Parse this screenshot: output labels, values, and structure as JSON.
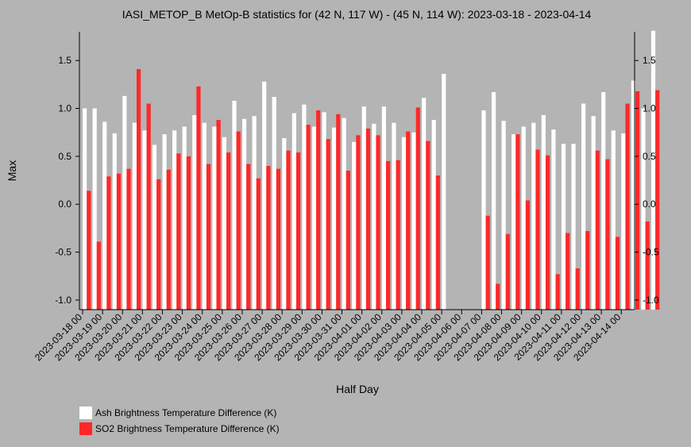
{
  "chart_data": {
    "type": "bar",
    "title": "IASI_METOP_B MetOp-B statistics for (42 N, 117 W) - (45 N, 114 W): 2023-03-18 - 2023-04-14",
    "xlabel": "Half Day",
    "ylabel": "Max",
    "ylim": [
      -1.1,
      1.8
    ],
    "yticks": [
      -1.0,
      -0.5,
      0.0,
      0.5,
      1.0,
      1.5
    ],
    "ytick_labels": [
      "-1.0",
      "-0.5",
      "0.0",
      "0.5",
      "1.0",
      "1.5"
    ],
    "grid": false,
    "legend_position": "bottom-left",
    "x_tick_labels": [
      "2023-03-18 00",
      "2023-03-19 00",
      "2023-03-20 00",
      "2023-03-21 00",
      "2023-03-22 00",
      "2023-03-23 00",
      "2023-03-24 00",
      "2023-03-25 00",
      "2023-03-26 00",
      "2023-03-27 00",
      "2023-03-28 00",
      "2023-03-29 00",
      "2023-03-30 00",
      "2023-03-31 00",
      "2023-04-01 00",
      "2023-04-02 00",
      "2023-04-03 00",
      "2023-04-04 00",
      "2023-04-05 00",
      "2023-04-06 00",
      "2023-04-07 00",
      "2023-04-08 00",
      "2023-04-09 00",
      "2023-04-10 00",
      "2023-04-11 00",
      "2023-04-12 00",
      "2023-04-13 00",
      "2023-04-14 00"
    ],
    "series": [
      {
        "name": "Ash Brightness Temperature Difference (K)",
        "color": "#ffffff",
        "values": [
          1.0,
          1.0,
          0.86,
          0.74,
          1.13,
          0.85,
          0.77,
          0.62,
          0.73,
          0.77,
          0.81,
          0.93,
          0.85,
          0.81,
          0.7,
          1.08,
          0.89,
          0.92,
          1.28,
          1.12,
          0.69,
          0.95,
          1.04,
          0.81,
          0.96,
          0.8,
          0.9,
          0.65,
          1.02,
          0.84,
          1.02,
          0.85,
          0.7,
          0.75,
          1.11,
          0.88,
          1.36,
          null,
          null,
          null,
          0.98,
          1.17,
          0.87,
          0.73,
          0.81,
          0.85,
          0.93,
          0.78,
          0.63,
          0.63,
          1.05,
          0.92,
          1.17,
          0.77,
          0.74,
          1.29,
          1.0,
          1.81
        ]
      },
      {
        "name": "SO2 Brightness Temperature Difference (K)",
        "color": "#ff2828",
        "values": [
          0.14,
          -0.39,
          0.29,
          0.32,
          0.37,
          1.41,
          1.05,
          0.26,
          0.36,
          0.53,
          0.5,
          1.23,
          0.42,
          0.88,
          0.54,
          0.76,
          0.42,
          0.27,
          0.4,
          0.37,
          0.56,
          0.54,
          0.83,
          0.98,
          0.68,
          0.94,
          0.35,
          0.72,
          0.79,
          0.72,
          0.45,
          0.46,
          0.76,
          1.01,
          0.66,
          0.3,
          null,
          null,
          null,
          null,
          -0.12,
          -0.83,
          -0.31,
          0.73,
          0.04,
          0.57,
          0.51,
          -0.73,
          -0.3,
          -0.67,
          -0.28,
          0.56,
          0.47,
          -0.34,
          1.05,
          1.18,
          -0.18,
          1.19
        ]
      }
    ]
  }
}
